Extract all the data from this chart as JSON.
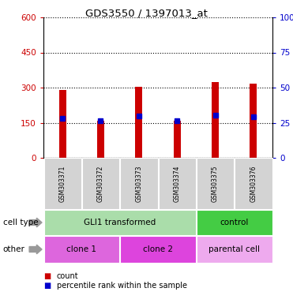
{
  "title": "GDS3550 / 1397013_at",
  "samples": [
    "GSM303371",
    "GSM303372",
    "GSM303373",
    "GSM303374",
    "GSM303375",
    "GSM303376"
  ],
  "counts": [
    290,
    160,
    303,
    160,
    325,
    318
  ],
  "percentile_ranks": [
    170,
    158,
    178,
    160,
    183,
    175
  ],
  "ylim_left": [
    0,
    600
  ],
  "ylim_right": [
    0,
    100
  ],
  "yticks_left": [
    0,
    150,
    300,
    450,
    600
  ],
  "yticks_right": [
    0,
    25,
    50,
    75,
    100
  ],
  "bar_color": "#cc0000",
  "percentile_color": "#0000cc",
  "bar_width": 0.18,
  "cell_types": [
    {
      "text": "GLI1 transformed",
      "start": 0,
      "end": 3,
      "color": "#aaddaa"
    },
    {
      "text": "control",
      "start": 4,
      "end": 5,
      "color": "#44cc44"
    }
  ],
  "other_types": [
    {
      "text": "clone 1",
      "start": 0,
      "end": 1,
      "color": "#dd66dd"
    },
    {
      "text": "clone 2",
      "start": 2,
      "end": 3,
      "color": "#dd44dd"
    },
    {
      "text": "parental cell",
      "start": 4,
      "end": 5,
      "color": "#eeaaee"
    }
  ],
  "row_label_cell_type": "cell type",
  "row_label_other": "other",
  "legend_count": "count",
  "legend_percentile": "percentile rank within the sample",
  "left_axis_color": "#cc0000",
  "right_axis_color": "#0000cc",
  "grid_color": "#000000",
  "label_bg_color": "#d3d3d3",
  "group_divider_after": 3
}
